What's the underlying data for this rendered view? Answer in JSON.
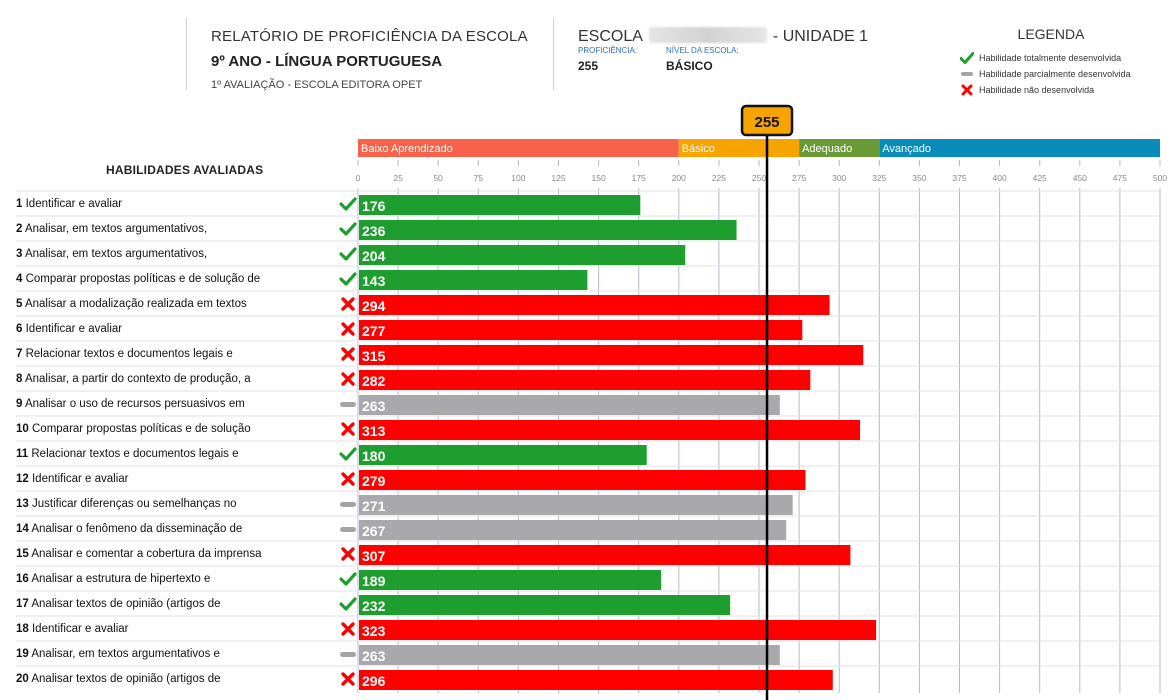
{
  "header": {
    "title": "RELATÓRIO DE PROFICIÊNCIA DA ESCOLA",
    "grade_subject": "9º ANO - LÍNGUA PORTUGUESA",
    "evaluation": "1º AVALIAÇÃO - ESCOLA EDITORA OPET"
  },
  "school": {
    "prefix": "ESCOLA",
    "suffix": "- UNIDADE 1",
    "proficiency_label": "PROFICIÊNCIA:",
    "proficiency_value": "255",
    "level_label": "NÍVEL DA ESCOLA:",
    "level_value": "BÁSICO"
  },
  "legend": {
    "title": "LEGENDA",
    "items": [
      {
        "icon": "check-icon",
        "label": "Habilidade totalmente desenvolvida",
        "color": "#1e9e2e"
      },
      {
        "icon": "dash-icon",
        "label": "Habilidade parcialmente desenvolvida",
        "color": "#a4a4a4"
      },
      {
        "icon": "cross-icon",
        "label": "Habilidade não desenvolvida",
        "color": "#ff0000"
      }
    ]
  },
  "skills_title": "HABILIDADES AVALIADAS",
  "chart_data": {
    "type": "bar",
    "orientation": "horizontal",
    "xlim": [
      0,
      500
    ],
    "x_ticks": [
      0,
      25,
      50,
      75,
      100,
      125,
      150,
      175,
      200,
      225,
      250,
      275,
      300,
      325,
      350,
      375,
      400,
      425,
      450,
      475,
      500
    ],
    "grid": true,
    "marker": {
      "value": 255,
      "label": "255",
      "color": "#f7a400"
    },
    "bands": [
      {
        "name": "Baixo Aprendizado",
        "from": 0,
        "to": 200,
        "color": "#f7624a"
      },
      {
        "name": "Básico",
        "from": 200,
        "to": 275,
        "color": "#f7a400"
      },
      {
        "name": "Adequado",
        "from": 275,
        "to": 325,
        "color": "#6a9a35"
      },
      {
        "name": "Avançado",
        "from": 325,
        "to": 500,
        "color": "#0a8cb8"
      }
    ],
    "status_colors": {
      "total": "#1e9e2e",
      "parcial": "#a9a9ab",
      "nao": "#ff0000"
    },
    "rows": [
      {
        "num": "1",
        "label": "Identificar e avaliar",
        "value": 176,
        "status": "total"
      },
      {
        "num": "2",
        "label": "Analisar, em textos argumentativos,",
        "value": 236,
        "status": "total"
      },
      {
        "num": "3",
        "label": "Analisar, em textos argumentativos,",
        "value": 204,
        "status": "total"
      },
      {
        "num": "4",
        "label": "Comparar propostas políticas e de solução de",
        "value": 143,
        "status": "total"
      },
      {
        "num": "5",
        "label": "Analisar a modalização realizada em textos",
        "value": 294,
        "status": "nao"
      },
      {
        "num": "6",
        "label": "Identificar e avaliar",
        "value": 277,
        "status": "nao"
      },
      {
        "num": "7",
        "label": "Relacionar textos e documentos legais e",
        "value": 315,
        "status": "nao"
      },
      {
        "num": "8",
        "label": "Analisar, a partir do contexto de produção, a",
        "value": 282,
        "status": "nao"
      },
      {
        "num": "9",
        "label": "Analisar o uso de recursos persuasivos em",
        "value": 263,
        "status": "parcial"
      },
      {
        "num": "10",
        "label": "Comparar propostas políticas e de solução",
        "value": 313,
        "status": "nao"
      },
      {
        "num": "11",
        "label": "Relacionar textos e documentos legais e",
        "value": 180,
        "status": "total"
      },
      {
        "num": "12",
        "label": "Identificar e avaliar",
        "value": 279,
        "status": "nao"
      },
      {
        "num": "13",
        "label": "Justificar diferenças ou semelhanças no",
        "value": 271,
        "status": "parcial"
      },
      {
        "num": "14",
        "label": "Analisar o fenômeno da disseminação de",
        "value": 267,
        "status": "parcial"
      },
      {
        "num": "15",
        "label": "Analisar e comentar a cobertura da imprensa",
        "value": 307,
        "status": "nao"
      },
      {
        "num": "16",
        "label": "Analisar a estrutura de hipertexto e",
        "value": 189,
        "status": "total"
      },
      {
        "num": "17",
        "label": "Analisar textos de opinião (artigos de",
        "value": 232,
        "status": "total"
      },
      {
        "num": "18",
        "label": "Identificar e avaliar",
        "value": 323,
        "status": "nao"
      },
      {
        "num": "19",
        "label": "Analisar, em textos argumentativos e",
        "value": 263,
        "status": "parcial"
      },
      {
        "num": "20",
        "label": "Analisar textos de opinião (artigos de",
        "value": 296,
        "status": "nao"
      }
    ]
  }
}
